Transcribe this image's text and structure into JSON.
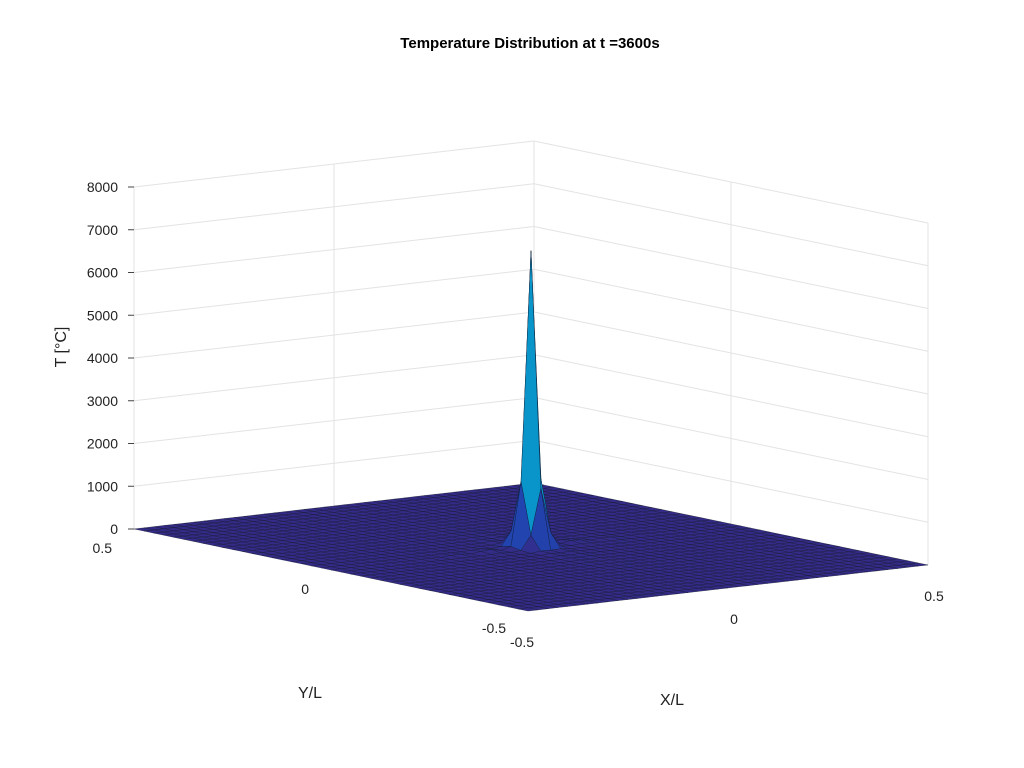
{
  "chart_data": {
    "type": "surface3d",
    "title": "Temperature Distribution at t =3600s",
    "xlabel": "X/L",
    "ylabel": "Y/L",
    "zlabel": "T [°C]",
    "xlim": [
      -0.5,
      0.5
    ],
    "ylim": [
      -0.5,
      0.5
    ],
    "zlim": [
      0,
      8000
    ],
    "xticks": [
      -0.5,
      0,
      0.5
    ],
    "xtick_labels": [
      "-0.5",
      "0",
      "0.5"
    ],
    "yticks": [
      -0.5,
      0,
      0.5
    ],
    "ytick_labels": [
      "-0.5",
      "0",
      "0.5"
    ],
    "zticks": [
      0,
      1000,
      2000,
      3000,
      4000,
      5000,
      6000,
      7000,
      8000
    ],
    "ztick_labels": [
      "0",
      "1000",
      "2000",
      "3000",
      "4000",
      "5000",
      "6000",
      "7000",
      "8000"
    ],
    "grid": true,
    "colormap": "parula",
    "peak": {
      "x": 0,
      "y": 0,
      "value": 6900
    }
  }
}
